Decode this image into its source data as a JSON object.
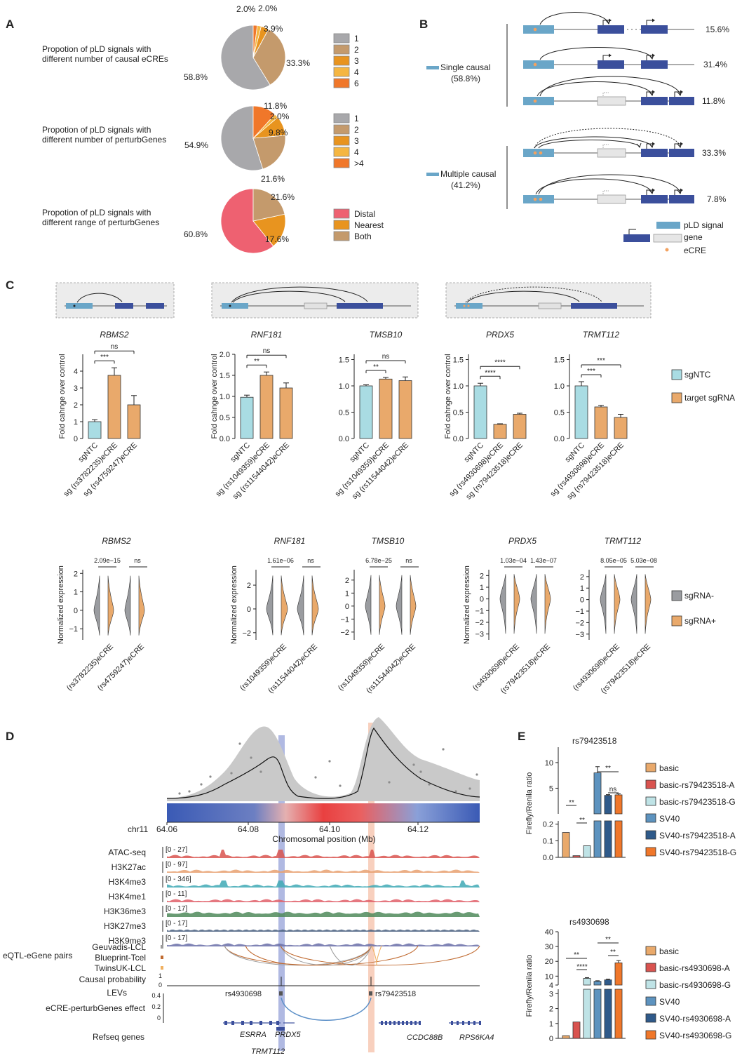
{
  "panel_letters": {
    "a": "A",
    "b": "B",
    "c": "C",
    "d": "D",
    "e": "E"
  },
  "colors": {
    "pie_grey": "#a8a8ab",
    "pie_brown": "#c49a6c",
    "pie_orange": "#e8941f",
    "pie_light_orange": "#f5b642",
    "pie_deep_orange": "#f0772a",
    "pie_red": "#ee6171",
    "sgNTC": "#a9dce3",
    "target": "#e9a96b",
    "violin_neg": "#9a9ca0",
    "violin_pos": "#e9a96b",
    "gene_box": "#3b4f9c",
    "pld_box": "#6aa6c8",
    "ecre": "#f3a260"
  },
  "panel_a": {
    "pies": [
      {
        "caption": [
          "Propotion of pLD signals with",
          "different number of causal eCREs"
        ],
        "slice_labels": [
          "58.8%",
          "33.3%",
          "3.9%",
          "2.0%",
          "2.0%"
        ],
        "legend": [
          "1",
          "2",
          "3",
          "4",
          "6"
        ]
      },
      {
        "caption": [
          "Propotion of pLD signals with",
          "different number of perturbGenes"
        ],
        "slice_labels": [
          "54.9%",
          "21.6%",
          "9.8%",
          "2.0%",
          "11.8%"
        ],
        "legend": [
          "1",
          "2",
          "3",
          "4",
          ">4"
        ]
      },
      {
        "caption": [
          "Propotion of pLD signals with",
          "different range of perturbGenes"
        ],
        "slice_labels": [
          "60.8%",
          "17.6%",
          "21.6%"
        ],
        "legend": [
          "Distal",
          "Nearest",
          "Both"
        ]
      }
    ]
  },
  "panel_b": {
    "single_label": [
      "Single causal",
      "(58.8%)"
    ],
    "multiple_label": [
      "Multiple causal",
      "(41.2%)"
    ],
    "row_pcts": [
      "15.6%",
      "31.4%",
      "11.8%",
      "33.3%",
      "7.8%"
    ],
    "legend": [
      "pLD signal",
      "gene",
      "eCRE"
    ]
  },
  "panel_c": {
    "ylabel_top": "Fold cahnge over control",
    "ylabel_bottom": "Normalized expression",
    "legend_top": [
      "sgNTC",
      "target sgRNA"
    ],
    "legend_bottom": [
      "sgRNA-",
      "sgRNA+"
    ],
    "bar_groups": [
      {
        "gene": "RBMS2",
        "ticks": [
          "0",
          "1",
          "2",
          "3",
          "4"
        ],
        "xlabels": [
          "sgNTC",
          "sg (rs3782235)eCRE",
          "sg (rs4759247)eCRE"
        ],
        "sig": [
          "***",
          "ns"
        ]
      },
      {
        "gene": "RNF181",
        "ticks": [
          "0.0",
          "0.5",
          "1.0",
          "1.5",
          "2.0"
        ],
        "xlabels": [
          "sgNTC",
          "sg (rs1049359)eCRE",
          "sg (rs11544042)eCRE"
        ],
        "sig": [
          "**",
          "ns"
        ]
      },
      {
        "gene": "TMSB10",
        "ticks": [
          "0.0",
          "0.5",
          "1.0",
          "1.5"
        ],
        "xlabels": [
          "sgNTC",
          "sg (rs1049359)eCRE",
          "sg (rs11544042)eCRE"
        ],
        "sig": [
          "**",
          "ns"
        ]
      },
      {
        "gene": "PRDX5",
        "ticks": [
          "0.0",
          "0.5",
          "1.0",
          "1.5"
        ],
        "xlabels": [
          "sgNTC",
          "sg (rs4930698)eCRE",
          "sg (rs79423518)eCRE"
        ],
        "sig": [
          "****",
          "****"
        ]
      },
      {
        "gene": "TRMT112",
        "ticks": [
          "0.0",
          "0.5",
          "1.0",
          "1.5"
        ],
        "xlabels": [
          "sgNTC",
          "sg (rs4930698)eCRE",
          "sg (rs79423518)eCRE"
        ],
        "sig": [
          "***",
          "***"
        ]
      }
    ],
    "violin_groups": [
      {
        "gene": "RBMS2",
        "ticks": [
          "-1",
          "0",
          "1",
          "2"
        ],
        "pvals": [
          "2.09e−15",
          "ns"
        ],
        "xlabels": [
          "(rs3782235)eCRE",
          "(rs4759247)eCRE"
        ]
      },
      {
        "gene": "RNF181",
        "ticks": [
          "-2",
          "0",
          "2"
        ],
        "pvals": [
          "1.61e−06",
          "ns"
        ],
        "xlabels": [
          "(rs1049359)eCRE",
          "(rs11544042)eCRE"
        ]
      },
      {
        "gene": "TMSB10",
        "ticks": [
          "-2",
          "-1",
          "0",
          "1",
          "2"
        ],
        "pvals": [
          "6.78e−25",
          "ns"
        ],
        "xlabels": [
          "(rs1049359)eCRE",
          "(rs11544042)eCRE"
        ]
      },
      {
        "gene": "PRDX5",
        "ticks": [
          "-3",
          "-2",
          "-1",
          "0",
          "1",
          "2"
        ],
        "pvals": [
          "1.03e−04",
          "1.43e−07"
        ],
        "xlabels": [
          "(rs4930698)eCRE",
          "(rs79423518)eCRE"
        ]
      },
      {
        "gene": "TRMT112",
        "ticks": [
          "-3",
          "-2",
          "-1",
          "0",
          "1",
          "2"
        ],
        "pvals": [
          "8.05e−05",
          "5.03e−08"
        ],
        "xlabels": [
          "(rs4930698)eCRE",
          "(rs79423518)eCRE"
        ]
      }
    ]
  },
  "panel_d": {
    "chrom": "chr11",
    "axis_ticks": [
      "64.06",
      "64.08",
      "64.10",
      "64.12"
    ],
    "axis_label": "Chromosomal position (Mb)",
    "tracks": [
      {
        "name": "ATAC-seq",
        "range": "[0 - 27]",
        "color": "#d9534f"
      },
      {
        "name": "H3K27ac",
        "range": "[0 - 97]",
        "color": "#e8a070"
      },
      {
        "name": "H3K4me3",
        "range": "[0 - 346]",
        "color": "#3fa9b5"
      },
      {
        "name": "H3K4me1",
        "range": "[0 - 11]",
        "color": "#e0606a"
      },
      {
        "name": "H3K36me3",
        "range": "[0 - 17]",
        "color": "#4f8a5a"
      },
      {
        "name": "H3K27me3",
        "range": "[0 - 17]",
        "color": "#4a6080"
      },
      {
        "name": "H3K9me3",
        "range": "[0 - 17]",
        "color": "#6a6fa8"
      }
    ],
    "eqtl_label": "eQTL-eGene pairs",
    "eqtl_sources": [
      "Geuvadis-LCL",
      "Blueprint-Tcel",
      "TwinsUK-LCL"
    ],
    "causal_label": "Causal probability",
    "causal_ticks": [
      "1",
      "0"
    ],
    "levs_label": "LEVs",
    "snp_labels": [
      "rs4930698",
      "rs79423518"
    ],
    "effect_label": "eCRE-perturbGenes effect",
    "effect_ticks": [
      "0.4",
      "0.2",
      "0"
    ],
    "refseq_label": "Refseq genes",
    "genes": [
      "ESRRA",
      "PRDX5",
      "TRMT112",
      "CCDC88B",
      "RPS6KA4"
    ]
  },
  "panel_e": {
    "ylabel": "Firefly/Renila ratio",
    "legend_colors": [
      "#e9a96b",
      "#d9534f",
      "#bfe3e6",
      "#5d93bf",
      "#2f5a8a",
      "#f0772a"
    ],
    "charts": [
      {
        "title": "rs79423518",
        "ticks_upper": [
          "5",
          "10"
        ],
        "ticks_lower": [
          "0.0",
          "0.1",
          "0.2"
        ],
        "sig": [
          "**",
          "**",
          "**",
          "ns"
        ],
        "legend": [
          "basic",
          "basic-rs79423518-A",
          "basic-rs79423518-G",
          "SV40",
          "SV40-rs79423518-A",
          "SV40-rs79423518-G"
        ]
      },
      {
        "title": "rs4930698",
        "ticks_upper": [
          "4",
          "10",
          "20",
          "30",
          "40"
        ],
        "ticks_lower": [
          "0",
          "1",
          "2",
          "3"
        ],
        "sig": [
          "**",
          "****",
          "**",
          "**"
        ],
        "legend": [
          "basic",
          "basic-rs4930698-A",
          "basic-rs4930698-G",
          "SV40",
          "SV40-rs4930698-A",
          "SV40-rs4930698-G"
        ]
      }
    ]
  },
  "chart_data": [
    {
      "type": "pie",
      "categories": [
        "1",
        "2",
        "3",
        "4",
        "6"
      ],
      "values": [
        58.8,
        33.3,
        3.9,
        2.0,
        2.0
      ]
    },
    {
      "type": "pie",
      "categories": [
        "1",
        "2",
        "3",
        "4",
        ">4"
      ],
      "values": [
        54.9,
        21.6,
        9.8,
        2.0,
        11.8
      ]
    },
    {
      "type": "pie",
      "categories": [
        "Distal",
        "Nearest",
        "Both"
      ],
      "values": [
        60.8,
        17.6,
        21.6
      ]
    },
    {
      "type": "bar",
      "title": "RBMS2",
      "ylabel": "Fold cahnge over control",
      "ylim": [
        0,
        5
      ],
      "categories": [
        "sgNTC",
        "sg (rs3782235)eCRE",
        "sg (rs4759247)eCRE"
      ],
      "values": [
        1.0,
        3.75,
        2.0
      ],
      "errors": [
        0.12,
        0.45,
        0.55
      ]
    },
    {
      "type": "bar",
      "title": "RNF181",
      "ylabel": "Fold cahnge over control",
      "ylim": [
        0,
        2
      ],
      "categories": [
        "sgNTC",
        "sg (rs1049359)eCRE",
        "sg (rs11544042)eCRE"
      ],
      "values": [
        0.98,
        1.5,
        1.2
      ],
      "errors": [
        0.05,
        0.08,
        0.12
      ]
    },
    {
      "type": "bar",
      "title": "TMSB10",
      "ylabel": "Fold cahnge over control",
      "ylim": [
        0,
        1.6
      ],
      "categories": [
        "sgNTC",
        "sg (rs1049359)eCRE",
        "sg (rs11544042)eCRE"
      ],
      "values": [
        1.0,
        1.13,
        1.1
      ],
      "errors": [
        0.02,
        0.03,
        0.07
      ]
    },
    {
      "type": "bar",
      "title": "PRDX5",
      "ylabel": "Fold cahnge over control",
      "ylim": [
        0,
        1.6
      ],
      "categories": [
        "sgNTC",
        "sg (rs4930698)eCRE",
        "sg (rs79423518)eCRE"
      ],
      "values": [
        1.0,
        0.27,
        0.46
      ],
      "errors": [
        0.05,
        0.01,
        0.02
      ]
    },
    {
      "type": "bar",
      "title": "TRMT112",
      "ylabel": "Fold cahnge over control",
      "ylim": [
        0,
        1.6
      ],
      "categories": [
        "sgNTC",
        "sg (rs4930698)eCRE",
        "sg (rs79423518)eCRE"
      ],
      "values": [
        1.0,
        0.6,
        0.4
      ],
      "errors": [
        0.08,
        0.03,
        0.06
      ]
    },
    {
      "type": "bar",
      "title": "rs79423518",
      "ylabel": "Firefly/Renila ratio",
      "categories": [
        "basic",
        "basic-rs79423518-A",
        "basic-rs79423518-G",
        "SV40",
        "SV40-rs79423518-A",
        "SV40-rs79423518-G"
      ],
      "values": [
        0.15,
        0.01,
        0.07,
        8.0,
        3.6,
        3.7
      ],
      "errors": [
        0.01,
        0.003,
        0.008,
        1.2,
        0.15,
        0.2
      ]
    },
    {
      "type": "bar",
      "title": "rs4930698",
      "ylabel": "Firefly/Renila ratio",
      "categories": [
        "basic",
        "basic-rs4930698-A",
        "basic-rs4930698-G",
        "SV40",
        "SV40-rs4930698-A",
        "SV40-rs4930698-G"
      ],
      "values": [
        0.18,
        1.1,
        8.5,
        6.5,
        7.5,
        19.0
      ],
      "errors": [
        0.03,
        0.15,
        0.5,
        0.4,
        0.5,
        1.5
      ]
    }
  ]
}
